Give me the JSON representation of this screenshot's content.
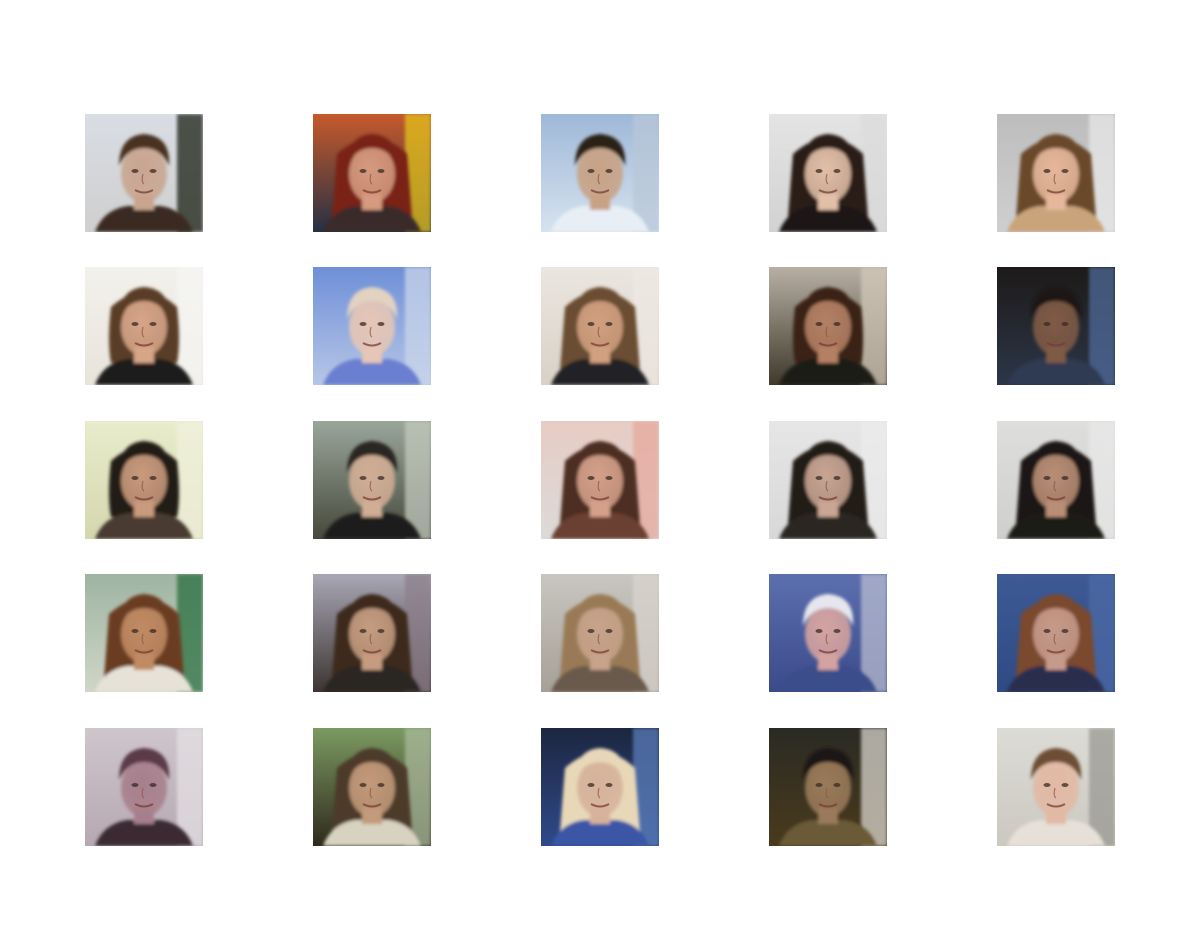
{
  "figure": {
    "rows": 5,
    "cols": 5,
    "tiles": [
      {
        "bg_top": "#d9dde4",
        "bg_bottom": "#cfcfcf",
        "bg_right": "#1a2418",
        "skin": "#c9a590",
        "hair": "#4a3324",
        "hair_len": "short",
        "shirt": "#3a2a22"
      },
      {
        "bg_top": "#c65a2c",
        "bg_bottom": "#273043",
        "bg_right": "#e3c21a",
        "skin": "#d59a7f",
        "hair": "#7a2418",
        "hair_len": "long",
        "shirt": "#3b2c2c"
      },
      {
        "bg_top": "#9fb8d8",
        "bg_bottom": "#d6e2ef",
        "bg_right": "#b9c7d8",
        "skin": "#c8a285",
        "hair": "#2b2018",
        "hair_len": "short",
        "shirt": "#e8eef6"
      },
      {
        "bg_top": "#e4e4e4",
        "bg_bottom": "#d2d2d2",
        "bg_right": "#dcdcdc",
        "skin": "#e2bfa8",
        "hair": "#2a1d17",
        "hair_len": "long",
        "shirt": "#1d1918"
      },
      {
        "bg_top": "#bdbdbd",
        "bg_bottom": "#cfcfcf",
        "bg_right": "#e8e8e8",
        "skin": "#e6b79b",
        "hair": "#6b4a2a",
        "hair_len": "long",
        "shirt": "#c9a47a"
      },
      {
        "bg_top": "#f3f1ec",
        "bg_bottom": "#e8e4dc",
        "bg_right": "#f6f6f4",
        "skin": "#d7a588",
        "hair": "#5a3d28",
        "hair_len": "medium",
        "shirt": "#1a1a1a"
      },
      {
        "bg_top": "#6e8fd8",
        "bg_bottom": "#b7c6e6",
        "bg_right": "#c9d5ea",
        "skin": "#e6c6b6",
        "hair": "#e2d2c2",
        "hair_len": "short",
        "shirt": "#6a7fd0"
      },
      {
        "bg_top": "#eae6e0",
        "bg_bottom": "#d9d1c6",
        "bg_right": "#efe9e4",
        "skin": "#d1a080",
        "hair": "#6b4e32",
        "hair_len": "long",
        "shirt": "#202025"
      },
      {
        "bg_top": "#b8b0a4",
        "bg_bottom": "#3e3a2c",
        "bg_right": "#d3c8ba",
        "skin": "#b48064",
        "hair": "#3a2418",
        "hair_len": "medium",
        "shirt": "#1e1a16"
      },
      {
        "bg_top": "#1d1a18",
        "bg_bottom": "#2c3648",
        "bg_right": "#4f6a9a",
        "skin": "#7f5a46",
        "hair": "#1a1612",
        "hair_len": "short",
        "shirt": "#2d3a52"
      },
      {
        "bg_top": "#e9eccc",
        "bg_bottom": "#d4d7ae",
        "bg_right": "#f1f1dd",
        "skin": "#c99a7d",
        "hair": "#231a16",
        "hair_len": "medium",
        "shirt": "#4a3a30"
      },
      {
        "bg_top": "#9aa69a",
        "bg_bottom": "#46493c",
        "bg_right": "#c2c8bc",
        "skin": "#d1ad95",
        "hair": "#2b2622",
        "hair_len": "short",
        "shirt": "#1e1e1a"
      },
      {
        "bg_top": "#e7ccc4",
        "bg_bottom": "#dcdad8",
        "bg_right": "#e7a99e",
        "skin": "#d4a08a",
        "hair": "#4d2f22",
        "hair_len": "long",
        "shirt": "#6a4130"
      },
      {
        "bg_top": "#e6e6e6",
        "bg_bottom": "#d8d8d8",
        "bg_right": "#ececec",
        "skin": "#c9a593",
        "hair": "#231b17",
        "hair_len": "long",
        "shirt": "#2a2624"
      },
      {
        "bg_top": "#dededc",
        "bg_bottom": "#cfcfcd",
        "bg_right": "#e9e9e9",
        "skin": "#b98e76",
        "hair": "#1d1513",
        "hair_len": "long",
        "shirt": "#1e1a18"
      },
      {
        "bg_top": "#9fb4a2",
        "bg_bottom": "#cfd6c8",
        "bg_right": "#2c6f40",
        "skin": "#c08b64",
        "hair": "#6b3c20",
        "hair_len": "long",
        "shirt": "#e7e2d8"
      },
      {
        "bg_top": "#a9a7b6",
        "bg_bottom": "#3e3532",
        "bg_right": "#8d7f8c",
        "skin": "#c59c80",
        "hair": "#3d2a1e",
        "hair_len": "long",
        "shirt": "#2a2523"
      },
      {
        "bg_top": "#c8c6c0",
        "bg_bottom": "#a6a198",
        "bg_right": "#d9d5ce",
        "skin": "#c7a38b",
        "hair": "#9a7a56",
        "hair_len": "long",
        "shirt": "#6a5a4b"
      },
      {
        "bg_top": "#5c6fae",
        "bg_bottom": "#3b4a8a",
        "bg_right": "#b8bcd0",
        "skin": "#d4a3a0",
        "hair": "#e6e6ee",
        "hair_len": "short",
        "shirt": "#3b4d8a"
      },
      {
        "bg_top": "#3e5a94",
        "bg_bottom": "#2f4a84",
        "bg_right": "#4e6aa6",
        "skin": "#c69a8a",
        "hair": "#7a4a2e",
        "hair_len": "long",
        "shirt": "#2a2f4e"
      },
      {
        "bg_top": "#cfc6cc",
        "bg_bottom": "#b6a8b2",
        "bg_right": "#e4e0e4",
        "skin": "#a77f8c",
        "hair": "#5a3b46",
        "hair_len": "short",
        "shirt": "#3a2a30"
      },
      {
        "bg_top": "#7c9a62",
        "bg_bottom": "#2f2a1c",
        "bg_right": "#a8b89a",
        "skin": "#c39a7a",
        "hair": "#4d3a2c",
        "hair_len": "long",
        "shirt": "#d8d2c0"
      },
      {
        "bg_top": "#1c2640",
        "bg_bottom": "#2f4a8a",
        "bg_right": "#5a7cb8",
        "skin": "#d6b29a",
        "hair": "#e8d8b8",
        "hair_len": "long",
        "shirt": "#3a56a6"
      },
      {
        "bg_top": "#2a2a24",
        "bg_bottom": "#4a3a1c",
        "bg_right": "#d8d4cc",
        "skin": "#9a7a5a",
        "hair": "#1a1814",
        "hair_len": "short",
        "shirt": "#6a5a38"
      },
      {
        "bg_top": "#dcdcd6",
        "bg_bottom": "#cbc8c0",
        "bg_right": "#9a9a92",
        "skin": "#e2b9a4",
        "hair": "#6e4e36",
        "hair_len": "short",
        "shirt": "#e6e0d8"
      }
    ]
  }
}
